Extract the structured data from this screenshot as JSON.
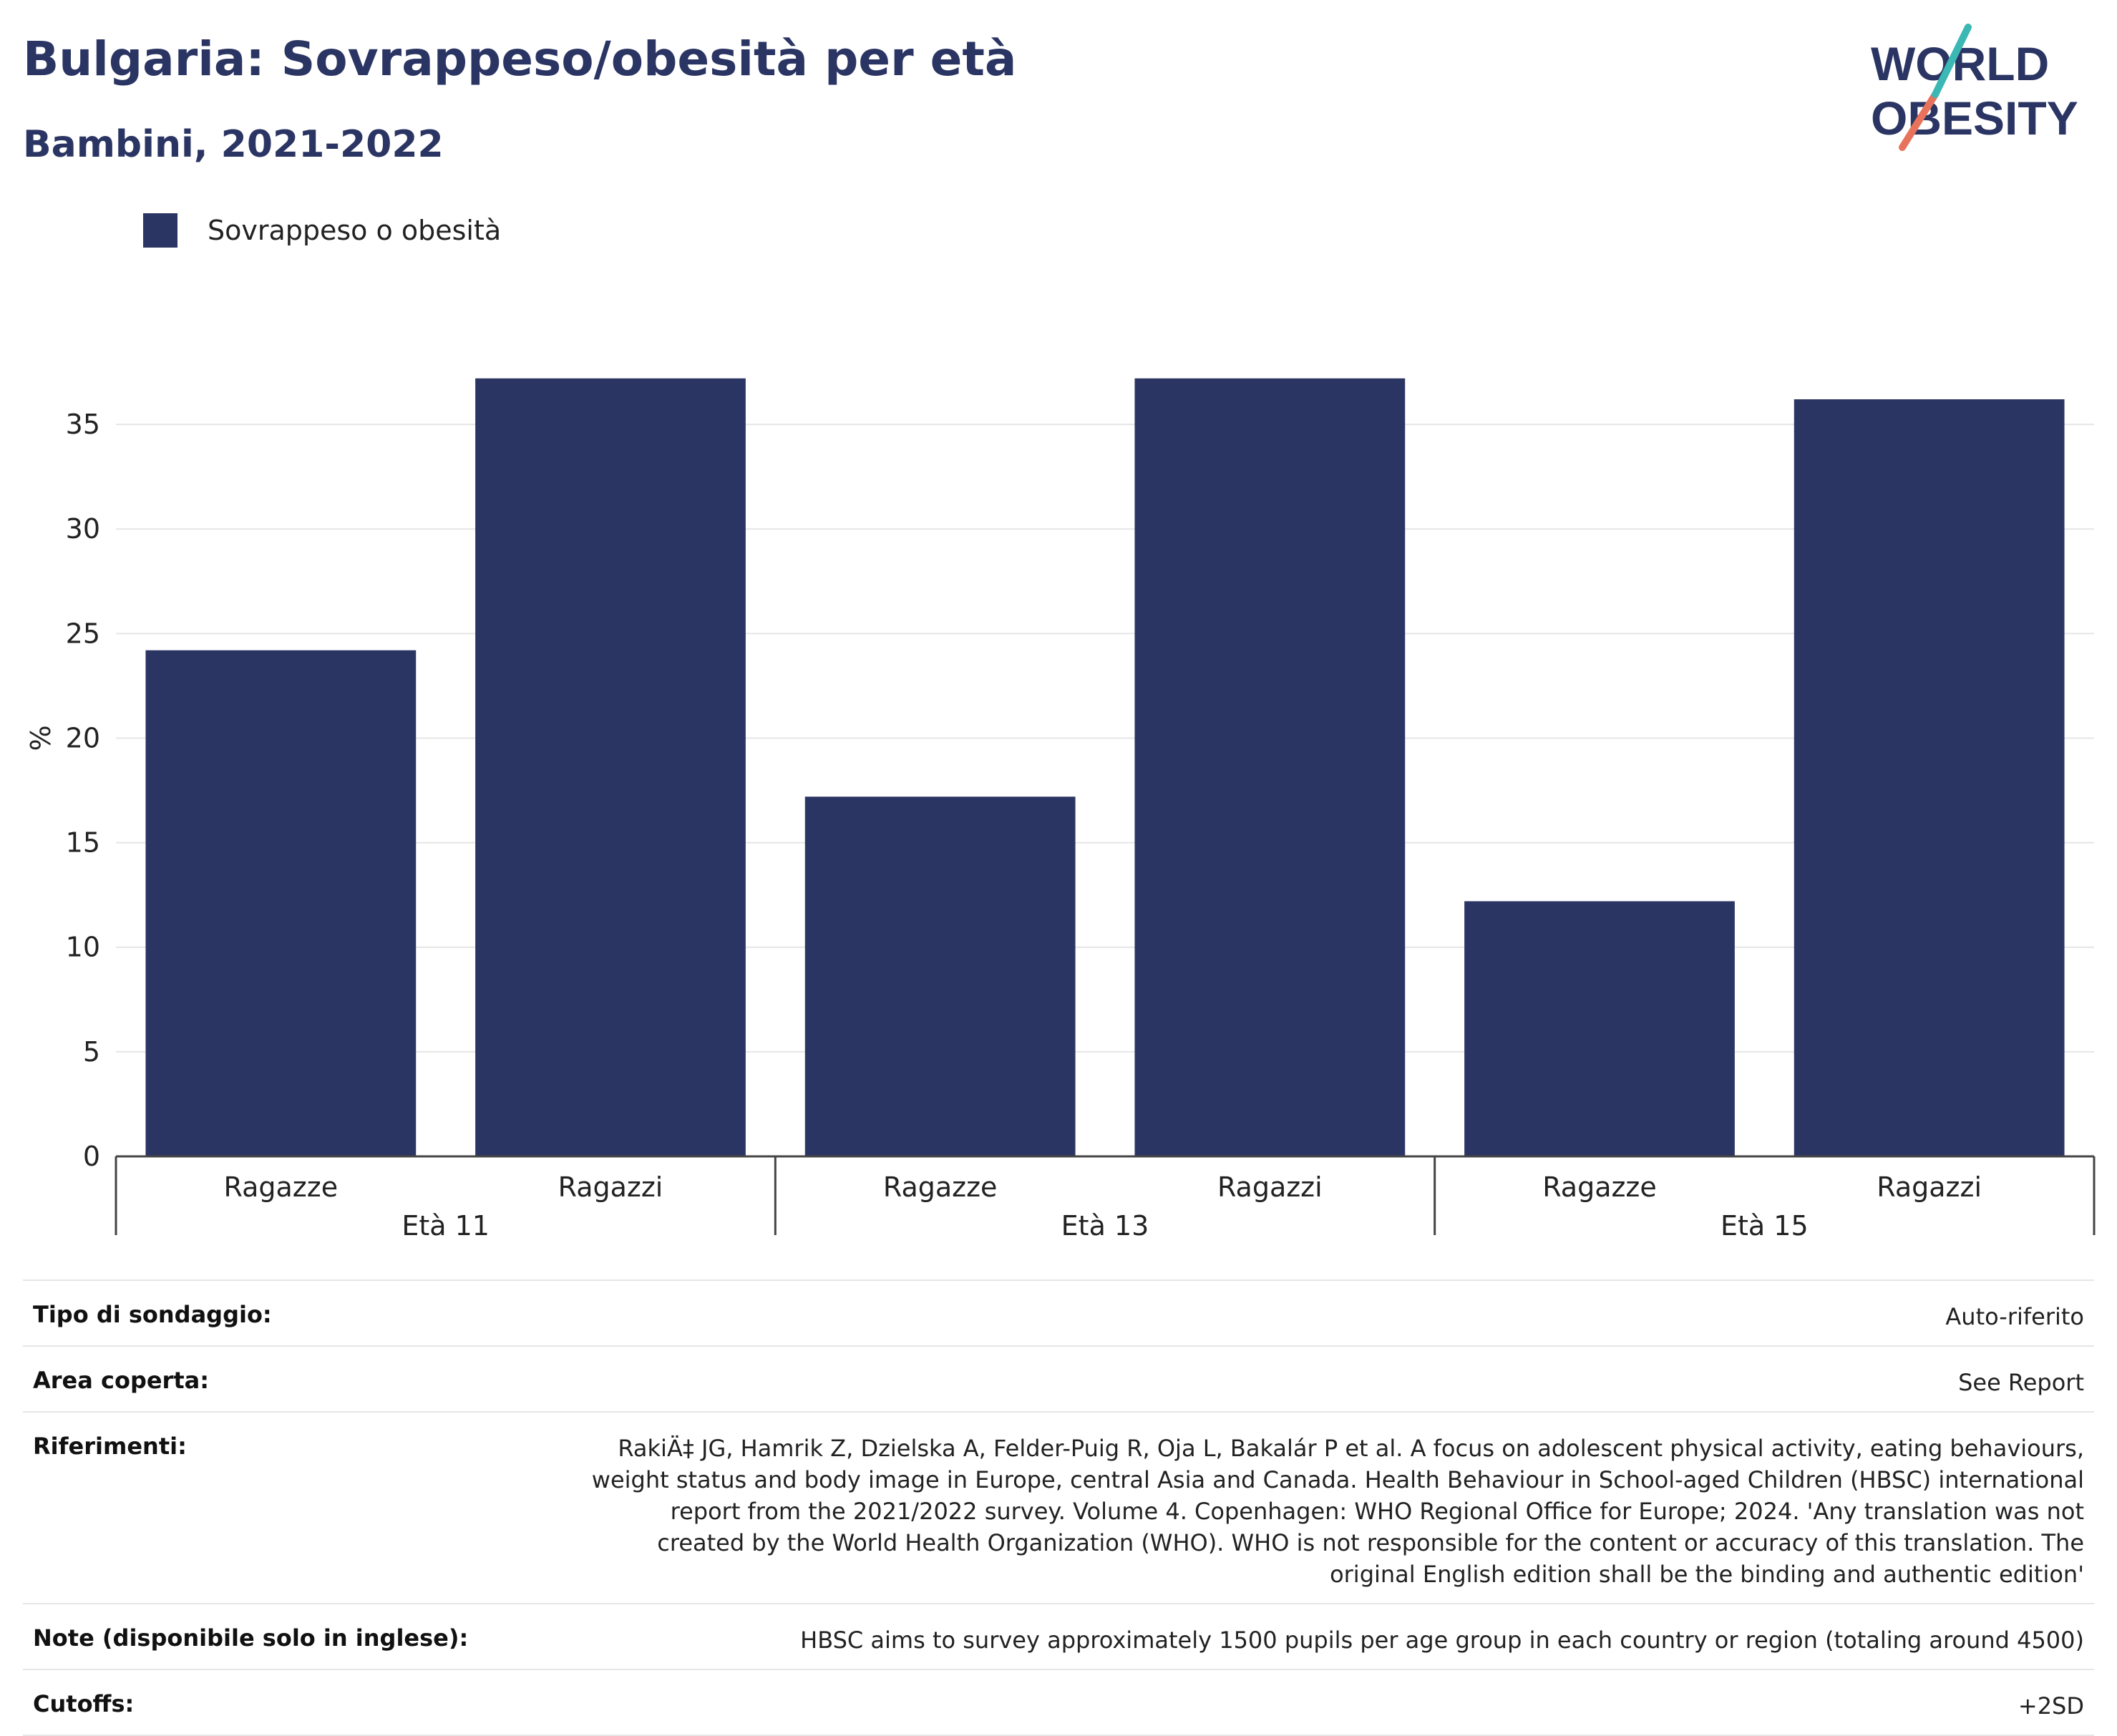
{
  "title": "Bulgaria: Sovrappeso/obesità per età",
  "subtitle": "Bambini, 2021-2022",
  "logo": {
    "line1": "WORLD",
    "line2": "OBESITY"
  },
  "legend": [
    {
      "label": "Sovrappeso o obesità",
      "color": "#2b3563"
    }
  ],
  "colors": {
    "bar": "#2b3563",
    "brand_teal": "#3bb8b3",
    "brand_coral": "#e8735c",
    "grid": "#e6e6e6"
  },
  "chart_data": {
    "type": "bar",
    "title": "Bulgaria: Sovrappeso/obesità per età",
    "subtitle": "Bambini, 2021-2022",
    "ylabel": "%",
    "ylim": [
      0,
      37.5
    ],
    "yticks": [
      0,
      5,
      10,
      15,
      20,
      25,
      30,
      35
    ],
    "groups": [
      "Età 11",
      "Età 13",
      "Età 15"
    ],
    "categories": [
      "Ragazze",
      "Ragazzi",
      "Ragazze",
      "Ragazzi",
      "Ragazze",
      "Ragazzi"
    ],
    "series": [
      {
        "name": "Sovrappeso o obesità",
        "values": [
          24.2,
          37.2,
          17.2,
          37.2,
          12.2,
          36.2
        ]
      }
    ],
    "grid": true,
    "legend_position": "top-left"
  },
  "meta": [
    {
      "key": "Tipo di sondaggio:",
      "value": "Auto-riferito"
    },
    {
      "key": "Area coperta:",
      "value": "See Report"
    },
    {
      "key": "Riferimenti:",
      "value": "RakiÄ‡ JG, Hamrik Z, Dzielska A, Felder-Puig R, Oja L, Bakalár P et al. A focus on adolescent physical activity, eating behaviours, weight status and body image in Europe, central Asia and Canada. Health Behaviour in School-aged Children (HBSC) international report from the 2021/2022 survey. Volume 4. Copenhagen: WHO Regional Office for Europe; 2024. 'Any translation was not created by the World Health Organization (WHO). WHO is not responsible for the content or accuracy of this translation. The original English edition shall be the binding and authentic edition'"
    },
    {
      "key": "Note (disponibile solo in inglese):",
      "value": "HBSC aims to survey approximately 1500 pupils per age group in each country or region (totaling around 4500)"
    },
    {
      "key": "Cutoffs:",
      "value": "+2SD"
    }
  ]
}
